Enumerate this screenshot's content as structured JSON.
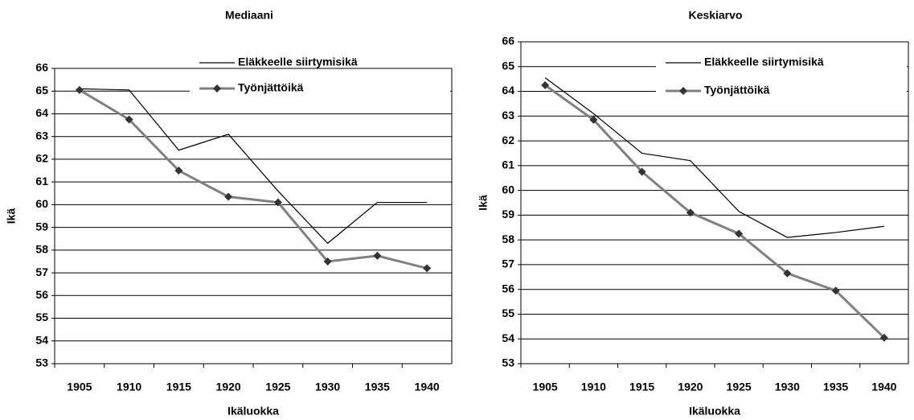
{
  "chart_data": [
    {
      "type": "line",
      "title": "Mediaani",
      "x_label": "Ikäluokka",
      "y_label": "Ikä",
      "categories": [
        "1905",
        "1910",
        "1915",
        "1920",
        "1925",
        "1930",
        "1935",
        "1940"
      ],
      "series": [
        {
          "name": "Eläkkeelle siirtymisikä",
          "color": "#000000",
          "values": [
            65.1,
            65.05,
            62.4,
            63.1,
            60.6,
            58.3,
            60.1,
            60.1
          ]
        },
        {
          "name": "Työnjättöikä",
          "color": "#808080",
          "values": [
            65.05,
            63.75,
            61.5,
            60.35,
            60.1,
            57.5,
            57.75,
            57.2
          ]
        }
      ],
      "ylim": [
        53,
        66
      ],
      "yticks": [
        53,
        54,
        55,
        56,
        57,
        58,
        59,
        60,
        61,
        62,
        63,
        64,
        65,
        66
      ],
      "grid": true
    },
    {
      "type": "line",
      "title": "Keskiarvo",
      "x_label": "Ikäluokka",
      "y_label": "Ikä",
      "categories": [
        "1905",
        "1910",
        "1915",
        "1920",
        "1925",
        "1930",
        "1935",
        "1940"
      ],
      "series": [
        {
          "name": "Eläkkeelle siirtymisikä",
          "color": "#000000",
          "values": [
            64.55,
            63.1,
            61.5,
            61.2,
            59.15,
            58.1,
            58.3,
            58.55
          ]
        },
        {
          "name": "Työnjättöikä",
          "color": "#808080",
          "values": [
            64.25,
            62.85,
            60.75,
            59.1,
            58.25,
            56.65,
            55.95,
            54.05
          ]
        }
      ],
      "ylim": [
        53,
        66
      ],
      "yticks": [
        53,
        54,
        55,
        56,
        57,
        58,
        59,
        60,
        61,
        62,
        63,
        64,
        65,
        66
      ],
      "grid": true
    }
  ]
}
